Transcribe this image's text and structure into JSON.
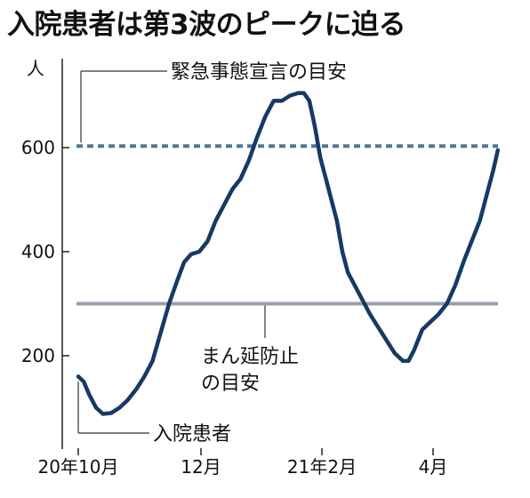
{
  "chart_data": {
    "type": "line",
    "title": "入院患者は第3波のピークに迫る",
    "ylabel": "人",
    "ylim": [
      0,
      700
    ],
    "yticks": [
      200,
      400,
      600
    ],
    "xticks": [
      "20年10月",
      "12月",
      "21年2月",
      "4月"
    ],
    "series": [
      {
        "name": "入院患者",
        "color": "#163a64",
        "values": [
          [
            0,
            160
          ],
          [
            4,
            150
          ],
          [
            8,
            125
          ],
          [
            13,
            100
          ],
          [
            18,
            88
          ],
          [
            24,
            90
          ],
          [
            30,
            100
          ],
          [
            36,
            115
          ],
          [
            42,
            135
          ],
          [
            48,
            160
          ],
          [
            54,
            190
          ],
          [
            60,
            245
          ],
          [
            66,
            300
          ],
          [
            72,
            345
          ],
          [
            77,
            380
          ],
          [
            82,
            395
          ],
          [
            88,
            400
          ],
          [
            94,
            420
          ],
          [
            100,
            460
          ],
          [
            106,
            490
          ],
          [
            112,
            520
          ],
          [
            118,
            540
          ],
          [
            124,
            575
          ],
          [
            130,
            620
          ],
          [
            136,
            660
          ],
          [
            142,
            690
          ],
          [
            148,
            690
          ],
          [
            154,
            700
          ],
          [
            160,
            705
          ],
          [
            164,
            705
          ],
          [
            168,
            690
          ],
          [
            172,
            640
          ],
          [
            176,
            580
          ],
          [
            180,
            540
          ],
          [
            184,
            500
          ],
          [
            188,
            460
          ],
          [
            192,
            400
          ],
          [
            196,
            360
          ],
          [
            200,
            340
          ],
          [
            204,
            320
          ],
          [
            208,
            300
          ],
          [
            212,
            280
          ],
          [
            218,
            255
          ],
          [
            224,
            230
          ],
          [
            230,
            205
          ],
          [
            236,
            190
          ],
          [
            240,
            190
          ],
          [
            244,
            210
          ],
          [
            250,
            250
          ],
          [
            256,
            265
          ],
          [
            262,
            280
          ],
          [
            268,
            300
          ],
          [
            274,
            335
          ],
          [
            280,
            380
          ],
          [
            286,
            420
          ],
          [
            292,
            460
          ],
          [
            298,
            520
          ],
          [
            302,
            560
          ],
          [
            305,
            595
          ]
        ]
      }
    ],
    "reference_lines": [
      {
        "label": "緊急事態宣言の目安",
        "value": 603,
        "color": "#4a7a96",
        "style": "dashed"
      },
      {
        "label_lines": [
          "まん延防止",
          "の目安"
        ],
        "value": 300,
        "color": "#9a9cb0",
        "style": "solid"
      }
    ],
    "series_label": "入院患者"
  }
}
